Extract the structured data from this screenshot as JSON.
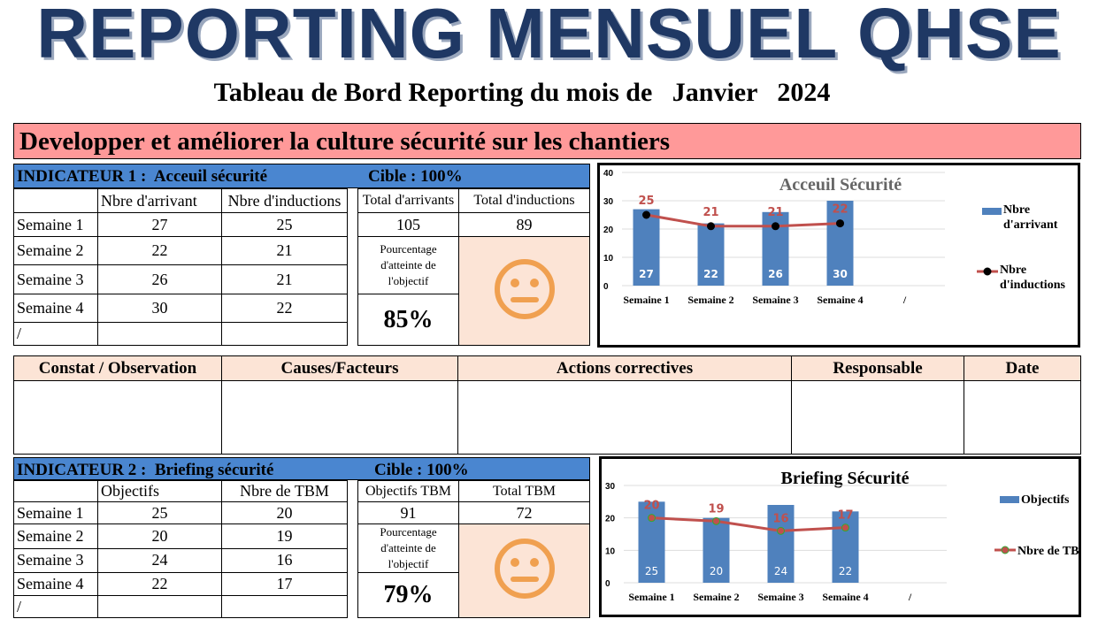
{
  "title": "REPORTING MENSUEL QHSE",
  "subtitle": "Tableau de Bord Reporting du mois de   Janvier   2024",
  "banner": "Developper et améliorer la culture sécurité  sur les chantiers",
  "indicators": [
    {
      "header": "INDICATEUR 1 :  Acceuil sécurité",
      "target": "Cible : 100%",
      "col1": "Nbre d'arrivant",
      "col2": "Nbre d'inductions",
      "total1_label": "Total d'arrivants",
      "total2_label": "Total d'inductions",
      "total1": "105",
      "total2": "89",
      "pct_label": "Pourcentage d'atteinte de l'objectif",
      "pct": "85%",
      "face": "neutral-face-icon",
      "rows": [
        [
          "Semaine 1",
          "27",
          "25"
        ],
        [
          "Semaine 2",
          "22",
          "21"
        ],
        [
          "Semaine 3",
          "26",
          "21"
        ],
        [
          "Semaine 4",
          "30",
          "22"
        ],
        [
          "/",
          "",
          ""
        ]
      ]
    },
    {
      "header": "INDICATEUR 2 :  Briefing sécurité",
      "target": "Cible : 100%",
      "col1": "Objectifs",
      "col2": "Nbre de TBM",
      "total1_label": "Objectifs TBM",
      "total2_label": "Total TBM",
      "total1": "91",
      "total2": "72",
      "pct_label": "Pourcentage d'atteinte de l'objectif",
      "pct": "79%",
      "face": "neutral-face-icon",
      "rows": [
        [
          "Semaine 1",
          "25",
          "20"
        ],
        [
          "Semaine 2",
          "20",
          "19"
        ],
        [
          "Semaine 3",
          "24",
          "16"
        ],
        [
          "Semaine 4",
          "22",
          "17"
        ],
        [
          "/",
          "",
          ""
        ]
      ]
    }
  ],
  "observation": {
    "headers": [
      "Constat / Observation",
      "Causes/Facteurs",
      "Actions correctives",
      "Responsable",
      "Date"
    ]
  },
  "colors": {
    "bar": "#4f81bd",
    "line": "#c0504d",
    "face": "#f0a050",
    "header": "#4a86d0",
    "banner": "#ff9999"
  },
  "chart_data": [
    {
      "type": "bar+line",
      "title": "Acceuil Sécurité",
      "categories": [
        "Semaine 1",
        "Semaine 2",
        "Semaine 3",
        "Semaine 4",
        "/"
      ],
      "ylim": [
        0,
        40
      ],
      "yticks": [
        0,
        10,
        20,
        30,
        40
      ],
      "legend": "right",
      "series": [
        {
          "name": "Nbre d'arrivant",
          "type": "bar",
          "values": [
            27,
            22,
            26,
            30,
            null
          ]
        },
        {
          "name": "Nbre d'inductions",
          "type": "line",
          "values": [
            25,
            21,
            21,
            22,
            null
          ]
        }
      ]
    },
    {
      "type": "bar+line",
      "title": "Briefing Sécurité",
      "categories": [
        "Semaine 1",
        "Semaine 2",
        "Semaine 3",
        "Semaine 4",
        "/"
      ],
      "ylim": [
        0,
        30
      ],
      "yticks": [
        0,
        10,
        20,
        30
      ],
      "legend": "right",
      "series": [
        {
          "name": "Objectifs",
          "type": "bar",
          "values": [
            25,
            20,
            24,
            22,
            null
          ]
        },
        {
          "name": "Nbre de TBM",
          "type": "line",
          "values": [
            20,
            19,
            16,
            17,
            null
          ]
        }
      ]
    }
  ]
}
